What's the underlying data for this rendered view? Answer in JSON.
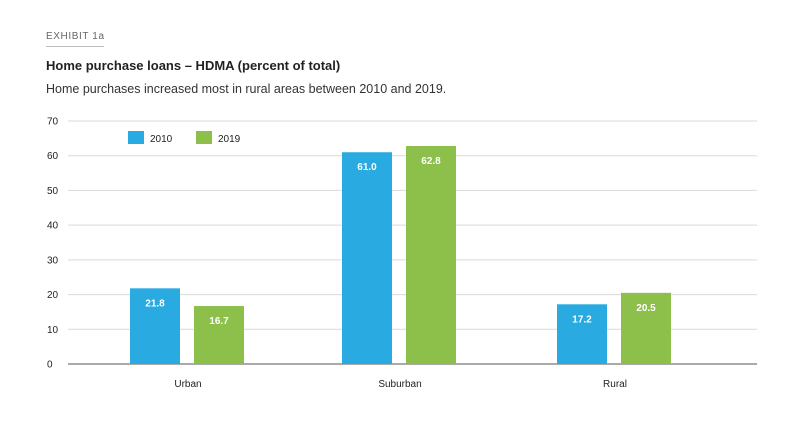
{
  "header": {
    "exhibit": "EXHIBIT 1a",
    "title": "Home purchase loans – HDMA (percent of total)",
    "subtitle": "Home purchases increased most in rural areas between 2010 and 2019."
  },
  "chart_data": {
    "type": "bar",
    "title": "Home purchase loans – HDMA (percent of total)",
    "subtitle": "Home purchases increased most in rural areas between 2010 and 2019.",
    "xlabel": "",
    "ylabel": "",
    "categories": [
      "Urban",
      "Suburban",
      "Rural"
    ],
    "series": [
      {
        "name": "2010",
        "color": "#29abe2",
        "values": [
          21.8,
          61.0,
          17.2
        ]
      },
      {
        "name": "2019",
        "color": "#8cc04b",
        "values": [
          16.7,
          62.8,
          20.5
        ]
      }
    ],
    "ylim": [
      0,
      70
    ],
    "yticks": [
      0,
      10,
      20,
      30,
      40,
      50,
      60,
      70
    ],
    "grid": true,
    "legend": "top-left"
  }
}
